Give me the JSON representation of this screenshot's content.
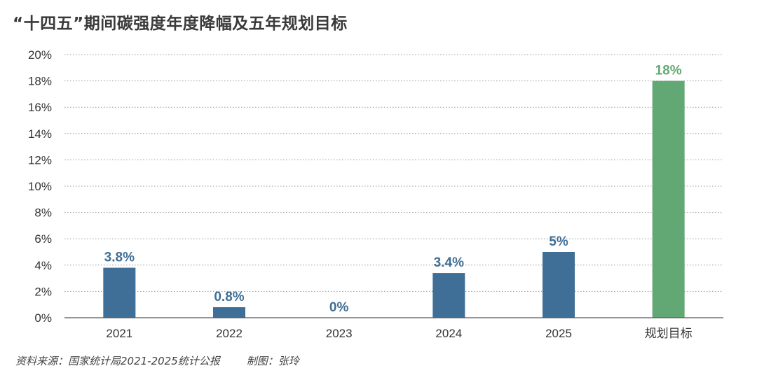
{
  "chart_data": {
    "type": "bar",
    "title": "“十四五”期间碳强度年度降幅及五年规划目标",
    "categories": [
      "2021",
      "2022",
      "2023",
      "2024",
      "2025",
      "规划目标"
    ],
    "values": [
      3.8,
      0.8,
      0,
      3.4,
      5,
      18
    ],
    "value_labels": [
      "3.8%",
      "0.8%",
      "0%",
      "3.4%",
      "5%",
      "18%"
    ],
    "yticks": [
      "0%",
      "2%",
      "4%",
      "6%",
      "8%",
      "10%",
      "12%",
      "14%",
      "16%",
      "18%",
      "20%"
    ],
    "ylim": [
      0,
      20
    ],
    "grid": true,
    "colors": {
      "actual": "#3f6e96",
      "target": "#62a874",
      "actual_label": "#3f6e96",
      "target_label": "#62a874"
    }
  },
  "footer": {
    "source": "资料来源：国家统计局2021-2025统计公报",
    "credit": "制图：张玲"
  }
}
